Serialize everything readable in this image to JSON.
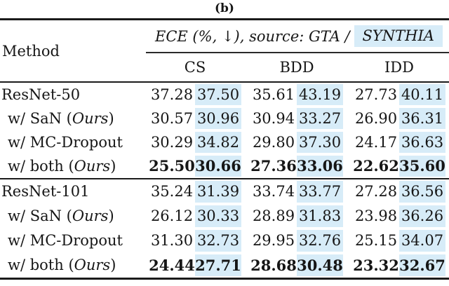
{
  "caption": "(b)",
  "colors": {
    "highlight": "#d7ecf8",
    "rule": "#1b1b1b",
    "text": "#161616"
  },
  "table": {
    "method_header": "Method",
    "metric_header": {
      "prefix": "ECE (%, ↓), source: GTA /",
      "highlighted": "SYNTHIA"
    },
    "dataset_headers": [
      "CS",
      "BDD",
      "IDD"
    ],
    "value_column_keys": [
      "gta-cs",
      "synthia-cs",
      "gta-bdd",
      "synthia-bdd",
      "gta-idd",
      "synthia-idd"
    ],
    "highlighted_value_columns": [
      1,
      3,
      5
    ],
    "groups": [
      {
        "rows": [
          {
            "label": "ResNet-50",
            "label_em": "",
            "label_end": "",
            "indent": false,
            "bold": false,
            "values": [
              "37.28",
              "37.50",
              "35.61",
              "43.19",
              "27.73",
              "40.11"
            ]
          },
          {
            "label": "w/ SaN (",
            "label_em": "Ours",
            "label_end": ")",
            "indent": true,
            "bold": false,
            "values": [
              "30.57",
              "30.96",
              "30.94",
              "33.27",
              "26.90",
              "36.31"
            ]
          },
          {
            "label": "w/ MC-Dropout",
            "label_em": "",
            "label_end": "",
            "indent": true,
            "bold": false,
            "values": [
              "30.29",
              "34.82",
              "29.80",
              "37.30",
              "24.17",
              "36.63"
            ]
          },
          {
            "label": "w/ both (",
            "label_em": "Ours",
            "label_end": ")",
            "indent": true,
            "bold": true,
            "values": [
              "25.50",
              "30.66",
              "27.36",
              "33.06",
              "22.62",
              "35.60"
            ]
          }
        ]
      },
      {
        "rows": [
          {
            "label": "ResNet-101",
            "label_em": "",
            "label_end": "",
            "indent": false,
            "bold": false,
            "values": [
              "35.24",
              "31.39",
              "33.74",
              "33.77",
              "27.28",
              "36.56"
            ]
          },
          {
            "label": "w/ SaN (",
            "label_em": "Ours",
            "label_end": ")",
            "indent": true,
            "bold": false,
            "values": [
              "26.12",
              "30.33",
              "28.89",
              "31.83",
              "23.98",
              "36.26"
            ]
          },
          {
            "label": "w/ MC-Dropout",
            "label_em": "",
            "label_end": "",
            "indent": true,
            "bold": false,
            "values": [
              "31.30",
              "32.73",
              "29.95",
              "32.76",
              "25.15",
              "34.07"
            ]
          },
          {
            "label": "w/ both (",
            "label_em": "Ours",
            "label_end": ")",
            "indent": true,
            "bold": true,
            "values": [
              "24.44",
              "27.71",
              "28.68",
              "30.48",
              "23.32",
              "32.67"
            ]
          }
        ]
      }
    ]
  }
}
